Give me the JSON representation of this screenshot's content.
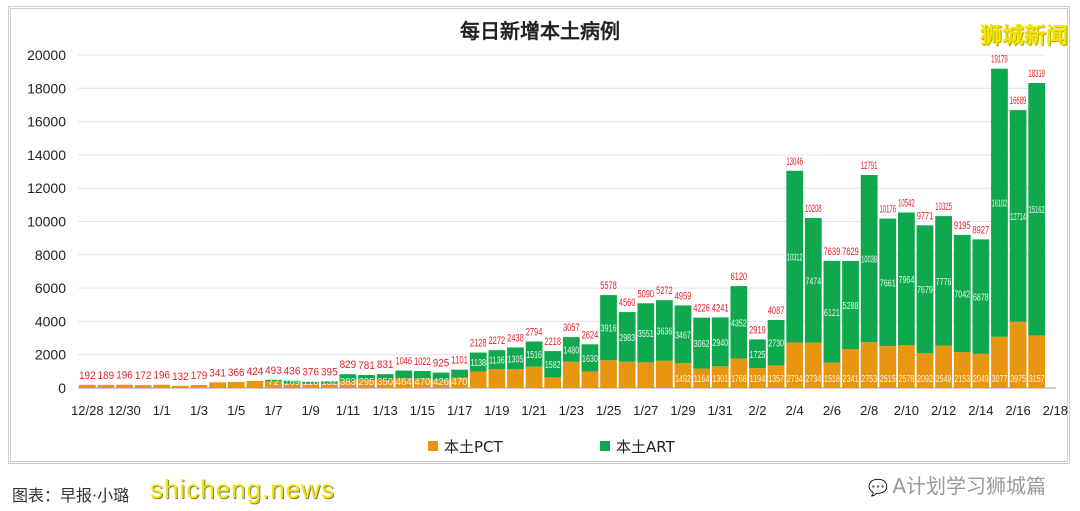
{
  "chart_data": {
    "type": "bar",
    "stacked": true,
    "title": "每日新增本土病例",
    "xlabel": "",
    "ylabel": "",
    "ylim": [
      0,
      20000
    ],
    "yticks": [
      0,
      2000,
      4000,
      6000,
      8000,
      10000,
      12000,
      14000,
      16000,
      18000,
      20000
    ],
    "grid": true,
    "legend_position": "bottom",
    "x_tick_labels": [
      "12/28",
      "12/30",
      "1/1",
      "1/3",
      "1/5",
      "1/7",
      "1/9",
      "1/11",
      "1/13",
      "1/15",
      "1/17",
      "1/19",
      "1/21",
      "1/23",
      "1/25",
      "1/27",
      "1/29",
      "1/31",
      "2/2",
      "2/4",
      "2/6",
      "2/8",
      "2/10",
      "2/12",
      "2/14",
      "2/16",
      "2/18"
    ],
    "categories": [
      "12/28",
      "12/29",
      "12/30",
      "12/31",
      "1/1",
      "1/2",
      "1/3",
      "1/4",
      "1/5",
      "1/6",
      "1/7",
      "1/8",
      "1/9",
      "1/10",
      "1/11",
      "1/12",
      "1/13",
      "1/14",
      "1/15",
      "1/16",
      "1/17",
      "1/18",
      "1/19",
      "1/20",
      "1/21",
      "1/22",
      "1/23",
      "1/24",
      "1/25",
      "1/26",
      "1/27",
      "1/28",
      "1/29",
      "1/30",
      "1/31",
      "2/1",
      "2/2",
      "2/3",
      "2/4",
      "2/5",
      "2/6",
      "2/7",
      "2/8",
      "2/9",
      "2/10",
      "2/11",
      "2/12",
      "2/13",
      "2/14",
      "2/15",
      "2/16",
      "2/17"
    ],
    "series": [
      {
        "name": "本土PCT",
        "color": "#e8960f",
        "values": [
          192,
          189,
          196,
          172,
          196,
          132,
          179,
          341,
          366,
          424,
          421,
          267,
          258,
          263,
          446,
          486,
          481,
          582,
          552,
          499,
          631,
          990,
          1136,
          1133,
          1278,
          636,
          1577,
          994,
          1662,
          1577,
          1539,
          1636,
          1492,
          1164,
          1301,
          1768,
          1194,
          1357,
          2734,
          2734,
          1518,
          2341,
          2753,
          2515,
          2578,
          2092,
          2549,
          2153,
          2049,
          3077,
          3975,
          3157
        ]
      },
      {
        "name": "本土ART",
        "color": "#10a84e",
        "values": [
          0,
          0,
          0,
          0,
          0,
          0,
          0,
          0,
          0,
          0,
          72,
          169,
          118,
          132,
          383,
          295,
          350,
          464,
          470,
          426,
          470,
          1138,
          1136,
          1305,
          1516,
          1582,
          1480,
          1630,
          3916,
          2983,
          3551,
          3636,
          3467,
          3062,
          2940,
          4352,
          1725,
          2730,
          10312,
          7474,
          6121,
          5288,
          10038,
          7661,
          7964,
          7679,
          7776,
          7042,
          6878,
          16102,
          12714,
          15162
        ]
      }
    ],
    "totals": [
      192,
      189,
      196,
      172,
      196,
      132,
      179,
      341,
      366,
      424,
      493,
      436,
      376,
      395,
      829,
      781,
      831,
      1046,
      1022,
      925,
      1101,
      2128,
      2272,
      2438,
      2794,
      2218,
      3057,
      2624,
      5578,
      4560,
      5090,
      5272,
      4959,
      4226,
      4241,
      6120,
      2919,
      4087,
      13046,
      10208,
      7639,
      7629,
      12791,
      10176,
      10542,
      9771,
      10325,
      9195,
      8927,
      19179,
      16689,
      18319
    ],
    "total_label_color": "#e8202a"
  },
  "watermarks": {
    "top_right": "狮城新闻",
    "bottom_right": "A计划学习狮城篇",
    "bottom_left": "shicheng.news"
  },
  "credit": "图表：早报·小璐"
}
